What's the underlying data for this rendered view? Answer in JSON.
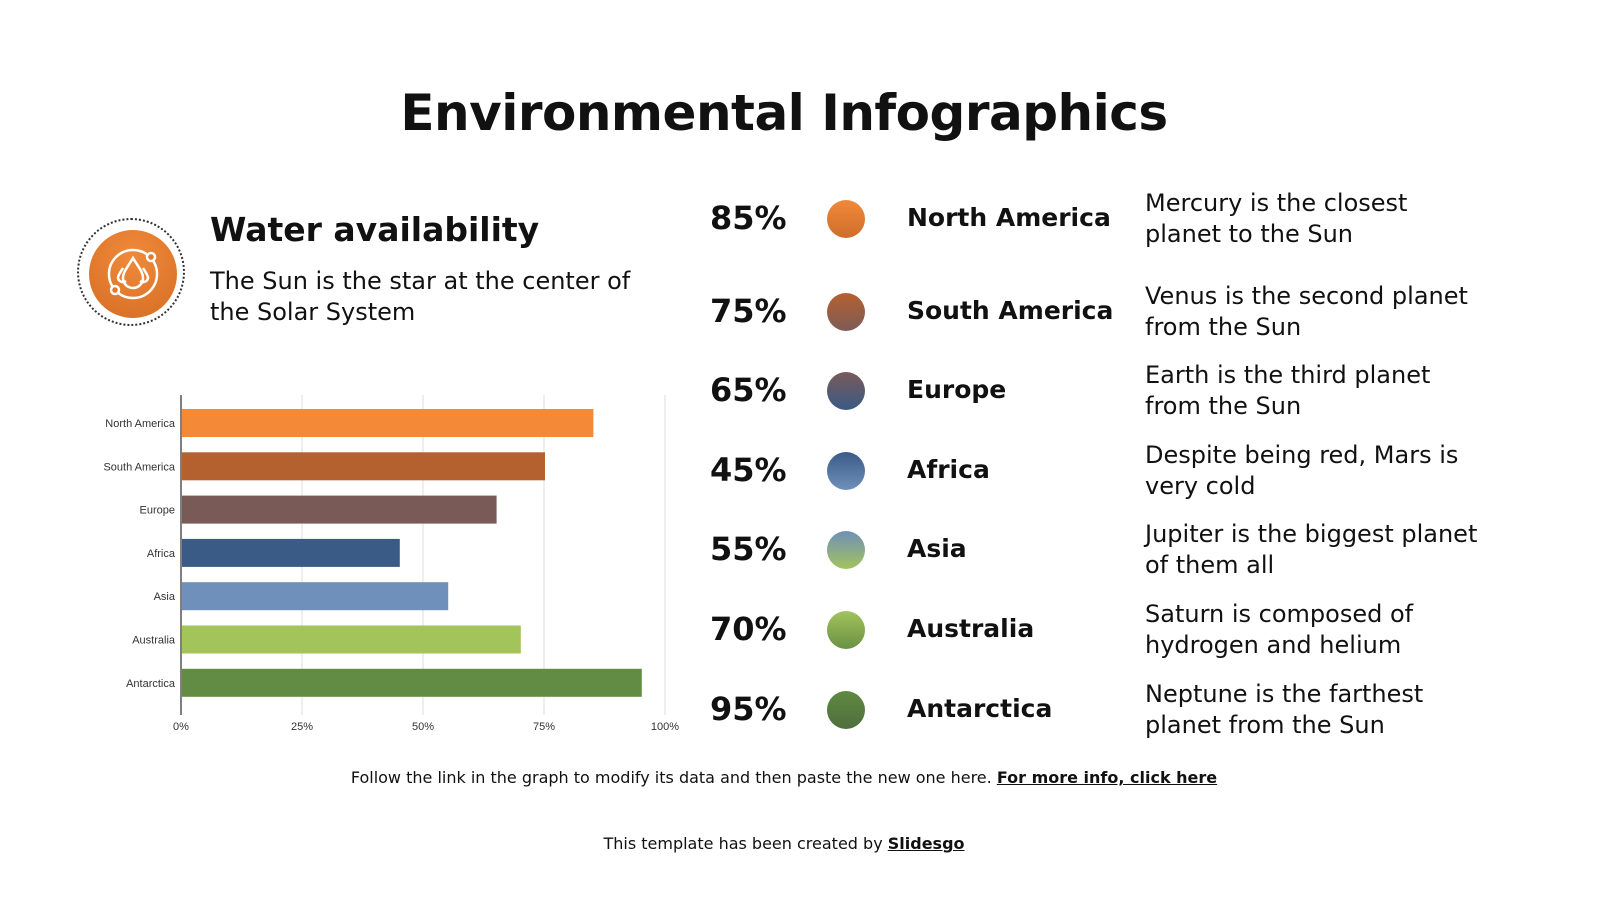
{
  "title": "Environmental Infographics",
  "section": {
    "icon": "water-drops-icon",
    "heading": "Water availability",
    "subtitle": "The Sun is the star at the center of the Solar System"
  },
  "items": [
    {
      "percent": "85%",
      "name": "North America",
      "description": "Mercury is the closest planet to the Sun",
      "colors": [
        "#f0893a",
        "#cf6e2a"
      ]
    },
    {
      "percent": "75%",
      "name": "South America",
      "description": "Venus is the second planet from the Sun",
      "colors": [
        "#b4612f",
        "#7d5b57"
      ]
    },
    {
      "percent": "65%",
      "name": "Europe",
      "description": "Earth is the third planet from the Sun",
      "colors": [
        "#785a5a",
        "#3b5a84"
      ]
    },
    {
      "percent": "45%",
      "name": "Africa",
      "description": "Despite being red, Mars is very cold",
      "colors": [
        "#3a5b86",
        "#6e90bb"
      ]
    },
    {
      "percent": "55%",
      "name": "Asia",
      "description": "Jupiter is the biggest planet of them all",
      "colors": [
        "#6f90b8",
        "#a3c25e"
      ]
    },
    {
      "percent": "70%",
      "name": "Australia",
      "description": "Saturn is composed of hydrogen and helium",
      "colors": [
        "#a3c35b",
        "#6a9145"
      ]
    },
    {
      "percent": "95%",
      "name": "Antarctica",
      "description": "Neptune is the farthest planet from the Sun",
      "colors": [
        "#5f8a40",
        "#4f6e3e"
      ]
    }
  ],
  "chart_data": {
    "type": "bar",
    "orientation": "horizontal",
    "categories": [
      "North America",
      "South America",
      "Europe",
      "Africa",
      "Asia",
      "Australia",
      "Antarctica"
    ],
    "values": [
      85,
      75,
      65,
      45,
      55,
      70,
      95
    ],
    "colors": [
      "#f48a38",
      "#b4612f",
      "#7a5a56",
      "#3a5b86",
      "#6f90bb",
      "#a3c35b",
      "#628c43"
    ],
    "xlim": [
      0,
      100
    ],
    "xticks": [
      "0%",
      "25%",
      "50%",
      "75%",
      "100%"
    ],
    "grid": true,
    "legend": "none"
  },
  "footer": {
    "text": "Follow the link in the graph to modify its data and then paste the new one here. ",
    "link": "For more info, click here"
  },
  "credit": {
    "text": "This template has been created by ",
    "link": "Slidesgo"
  }
}
